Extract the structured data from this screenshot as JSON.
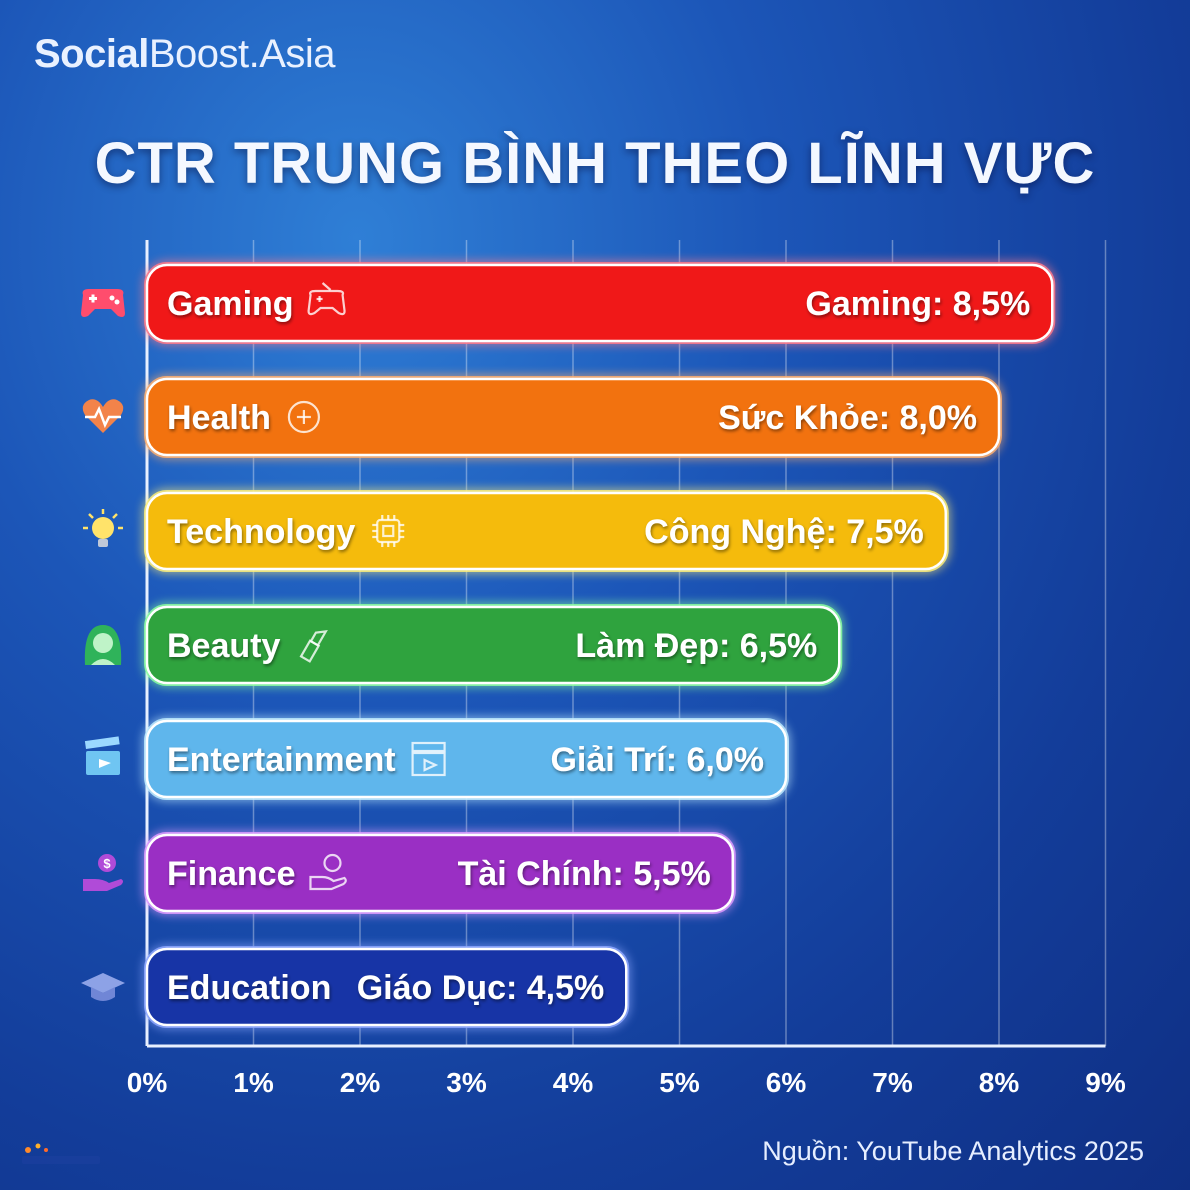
{
  "brand": {
    "bold": "Social",
    "regular": "Boost.Asia"
  },
  "title": "CTR TRUNG BÌNH THEO LĨNH VỰC",
  "source": "Nguồn: YouTube Analytics 2025",
  "chart_data": {
    "type": "bar",
    "orientation": "horizontal",
    "categories": [
      "Gaming",
      "Health",
      "Technology",
      "Beauty",
      "Entertainment",
      "Finance",
      "Education"
    ],
    "value_labels": [
      "Gaming: 8,5%",
      "Sức Khỏe: 8,0%",
      "Công Nghệ: 7,5%",
      "Làm Đẹp: 6,5%",
      "Giải Trí: 6,0%",
      "Tài Chính: 5,5%",
      "Giáo Dục: 4,5%"
    ],
    "values": [
      8.5,
      8.0,
      7.5,
      6.5,
      6.0,
      5.5,
      4.5
    ],
    "colors": [
      "#f01818",
      "#f2720f",
      "#f5bb0c",
      "#2fa33e",
      "#5fb6ec",
      "#9a2fc4",
      "#1734a6"
    ],
    "glow_colors": [
      "#ff7a8a",
      "#ffb070",
      "#fff07a",
      "#8dffa0",
      "#c0ecff",
      "#e09cff",
      "#8fa8ff"
    ],
    "icons": [
      "gamepad-icon",
      "heart-pulse-icon",
      "lightbulb-icon",
      "woman-icon",
      "clapperboard-icon",
      "hand-money-icon",
      "graduation-cap-icon"
    ],
    "inline_icons": [
      "gamepad-outline-icon",
      "plus-circle-icon",
      "chip-icon",
      "lipstick-icon",
      "clapperboard-outline-icon",
      "hand-coin-outline-icon",
      ""
    ],
    "x_ticks": [
      "0%",
      "1%",
      "2%",
      "3%",
      "4%",
      "5%",
      "6%",
      "7%",
      "8%",
      "9%"
    ],
    "xlim": [
      0,
      9
    ],
    "grid": true
  }
}
